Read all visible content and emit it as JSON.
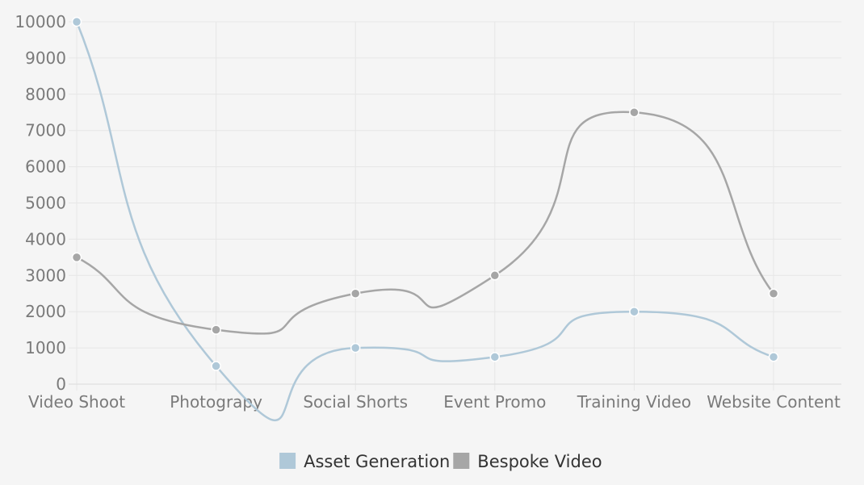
{
  "chart_data": {
    "type": "line",
    "title": "",
    "xlabel": "",
    "ylabel": "",
    "categories": [
      "Video Shoot",
      "Photograpy",
      "Social Shorts",
      "Event Promo",
      "Training Video",
      "Website Content"
    ],
    "ylim": [
      0,
      10000
    ],
    "yticks": [
      0,
      1000,
      2000,
      3000,
      4000,
      5000,
      6000,
      7000,
      8000,
      9000,
      10000
    ],
    "grid": true,
    "curve": "smooth",
    "legend_position": "bottom",
    "series": [
      {
        "name": "Asset Generation",
        "color": "#afc8d8",
        "values": [
          10000,
          500,
          1000,
          750,
          2000,
          750
        ]
      },
      {
        "name": "Bespoke Video",
        "color": "#a6a6a6",
        "values": [
          3500,
          1500,
          2500,
          3000,
          7500,
          2500
        ]
      }
    ]
  }
}
